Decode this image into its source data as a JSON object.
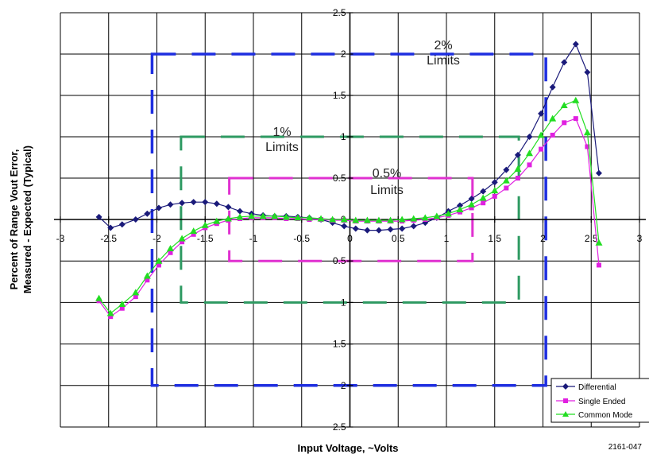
{
  "chart_data": {
    "type": "line",
    "xlabel": "Input Voltage, ~Volts",
    "ylabel_line1": "Percent of Range Vout Error,",
    "ylabel_line2": "Measured - Expected (Typical)",
    "xlim": [
      -3,
      3
    ],
    "ylim": [
      -2.5,
      2.5
    ],
    "x_ticks": [
      -3,
      -2.5,
      -2,
      -1.5,
      -1,
      -0.5,
      0,
      0.5,
      1,
      1.5,
      2,
      2.5,
      3
    ],
    "y_ticks": [
      2.5,
      2,
      1.5,
      1,
      0.5,
      0,
      -0.5,
      -1,
      -1.5,
      -2,
      -2.5
    ],
    "x_tick_labels": [
      "-3",
      "-2.5",
      "-2",
      "-1.5",
      "-1",
      "-0.5",
      "0",
      "0.5",
      "1",
      "1.5",
      "2",
      "2.5",
      "3"
    ],
    "y_tick_labels": [
      "2.5",
      "2",
      "1.5",
      "1",
      "0.5",
      "0",
      "0.5",
      "1",
      "1.5",
      "2",
      "2.5"
    ],
    "grid": true,
    "legend_position": "bottom-right",
    "series": [
      {
        "name": "Differential",
        "color": "#1a1a7a",
        "marker": "diamond",
        "points": [
          [
            -2.6,
            0.03
          ],
          [
            -2.48,
            -0.1
          ],
          [
            -2.36,
            -0.06
          ],
          [
            -2.22,
            0.0
          ],
          [
            -2.1,
            0.07
          ],
          [
            -1.98,
            0.14
          ],
          [
            -1.86,
            0.18
          ],
          [
            -1.74,
            0.2
          ],
          [
            -1.62,
            0.21
          ],
          [
            -1.5,
            0.21
          ],
          [
            -1.38,
            0.19
          ],
          [
            -1.26,
            0.15
          ],
          [
            -1.14,
            0.1
          ],
          [
            -1.02,
            0.07
          ],
          [
            -0.9,
            0.05
          ],
          [
            -0.78,
            0.04
          ],
          [
            -0.66,
            0.04
          ],
          [
            -0.54,
            0.03
          ],
          [
            -0.42,
            0.02
          ],
          [
            -0.3,
            0.0
          ],
          [
            -0.18,
            -0.04
          ],
          [
            -0.06,
            -0.08
          ],
          [
            0.06,
            -0.11
          ],
          [
            0.18,
            -0.13
          ],
          [
            0.3,
            -0.13
          ],
          [
            0.42,
            -0.12
          ],
          [
            0.54,
            -0.11
          ],
          [
            0.66,
            -0.08
          ],
          [
            0.78,
            -0.04
          ],
          [
            0.9,
            0.02
          ],
          [
            1.02,
            0.1
          ],
          [
            1.14,
            0.17
          ],
          [
            1.26,
            0.25
          ],
          [
            1.38,
            0.34
          ],
          [
            1.5,
            0.45
          ],
          [
            1.62,
            0.6
          ],
          [
            1.74,
            0.78
          ],
          [
            1.86,
            1.0
          ],
          [
            1.98,
            1.28
          ],
          [
            2.1,
            1.6
          ],
          [
            2.22,
            1.9
          ],
          [
            2.34,
            2.12
          ],
          [
            2.46,
            1.78
          ],
          [
            2.58,
            0.56
          ]
        ]
      },
      {
        "name": "Single Ended",
        "color": "#e020e0",
        "marker": "square",
        "points": [
          [
            -2.6,
            -0.98
          ],
          [
            -2.48,
            -1.17
          ],
          [
            -2.36,
            -1.07
          ],
          [
            -2.22,
            -0.93
          ],
          [
            -2.1,
            -0.73
          ],
          [
            -1.98,
            -0.55
          ],
          [
            -1.86,
            -0.4
          ],
          [
            -1.74,
            -0.27
          ],
          [
            -1.62,
            -0.18
          ],
          [
            -1.5,
            -0.1
          ],
          [
            -1.38,
            -0.05
          ],
          [
            -1.26,
            -0.01
          ],
          [
            -1.14,
            0.01
          ],
          [
            -1.02,
            0.02
          ],
          [
            -0.9,
            0.02
          ],
          [
            -0.78,
            0.02
          ],
          [
            -0.66,
            0.01
          ],
          [
            -0.54,
            0.01
          ],
          [
            -0.42,
            0.0
          ],
          [
            -0.3,
            0.0
          ],
          [
            -0.18,
            -0.01
          ],
          [
            -0.06,
            -0.01
          ],
          [
            0.06,
            -0.02
          ],
          [
            0.18,
            -0.02
          ],
          [
            0.3,
            -0.02
          ],
          [
            0.42,
            -0.02
          ],
          [
            0.54,
            -0.02
          ],
          [
            0.66,
            -0.01
          ],
          [
            0.78,
            0.0
          ],
          [
            0.9,
            0.02
          ],
          [
            1.02,
            0.05
          ],
          [
            1.14,
            0.09
          ],
          [
            1.26,
            0.14
          ],
          [
            1.38,
            0.2
          ],
          [
            1.5,
            0.28
          ],
          [
            1.62,
            0.38
          ],
          [
            1.74,
            0.5
          ],
          [
            1.86,
            0.66
          ],
          [
            1.98,
            0.85
          ],
          [
            2.1,
            1.02
          ],
          [
            2.22,
            1.17
          ],
          [
            2.34,
            1.22
          ],
          [
            2.46,
            0.88
          ],
          [
            2.58,
            -0.55
          ]
        ]
      },
      {
        "name": "Common Mode",
        "color": "#22dd22",
        "marker": "triangle",
        "points": [
          [
            -2.6,
            -0.95
          ],
          [
            -2.48,
            -1.13
          ],
          [
            -2.36,
            -1.02
          ],
          [
            -2.22,
            -0.88
          ],
          [
            -2.1,
            -0.68
          ],
          [
            -1.98,
            -0.5
          ],
          [
            -1.86,
            -0.35
          ],
          [
            -1.74,
            -0.23
          ],
          [
            -1.62,
            -0.14
          ],
          [
            -1.5,
            -0.07
          ],
          [
            -1.38,
            -0.02
          ],
          [
            -1.26,
            0.01
          ],
          [
            -1.14,
            0.03
          ],
          [
            -1.02,
            0.04
          ],
          [
            -0.9,
            0.04
          ],
          [
            -0.78,
            0.04
          ],
          [
            -0.66,
            0.03
          ],
          [
            -0.54,
            0.02
          ],
          [
            -0.42,
            0.02
          ],
          [
            -0.3,
            0.01
          ],
          [
            -0.18,
            0.0
          ],
          [
            -0.06,
            0.0
          ],
          [
            0.06,
            -0.01
          ],
          [
            0.18,
            -0.01
          ],
          [
            0.3,
            -0.01
          ],
          [
            0.42,
            -0.01
          ],
          [
            0.54,
            0.0
          ],
          [
            0.66,
            0.01
          ],
          [
            0.78,
            0.02
          ],
          [
            0.9,
            0.04
          ],
          [
            1.02,
            0.07
          ],
          [
            1.14,
            0.12
          ],
          [
            1.26,
            0.18
          ],
          [
            1.38,
            0.26
          ],
          [
            1.5,
            0.35
          ],
          [
            1.62,
            0.47
          ],
          [
            1.74,
            0.61
          ],
          [
            1.86,
            0.8
          ],
          [
            1.98,
            1.02
          ],
          [
            2.1,
            1.22
          ],
          [
            2.22,
            1.38
          ],
          [
            2.34,
            1.44
          ],
          [
            2.46,
            1.05
          ],
          [
            2.58,
            -0.28
          ]
        ]
      }
    ],
    "limit_boxes": [
      {
        "label": "2% Limits",
        "x": [
          -2.05,
          2.03
        ],
        "y": [
          -2.0,
          2.0
        ],
        "color": "#1e2ee0",
        "dash": "30,20",
        "width": 3.5
      },
      {
        "label": "1% Limits",
        "x": [
          -1.75,
          1.75
        ],
        "y": [
          -1.0,
          1.0
        ],
        "color": "#2e9a62",
        "dash": "30,20",
        "width": 3
      },
      {
        "label": "0.5% Limits",
        "x": [
          -1.25,
          1.27
        ],
        "y": [
          -0.5,
          0.5
        ],
        "color": "#e030d0",
        "dash": "30,20",
        "width": 3
      }
    ],
    "annotations": [
      {
        "line1": "2%",
        "line2": "Limits"
      },
      {
        "line1": "1%",
        "line2": "Limits"
      },
      {
        "line1": "0.5%",
        "line2": "Limits"
      }
    ],
    "figure_id": "2161-047"
  }
}
